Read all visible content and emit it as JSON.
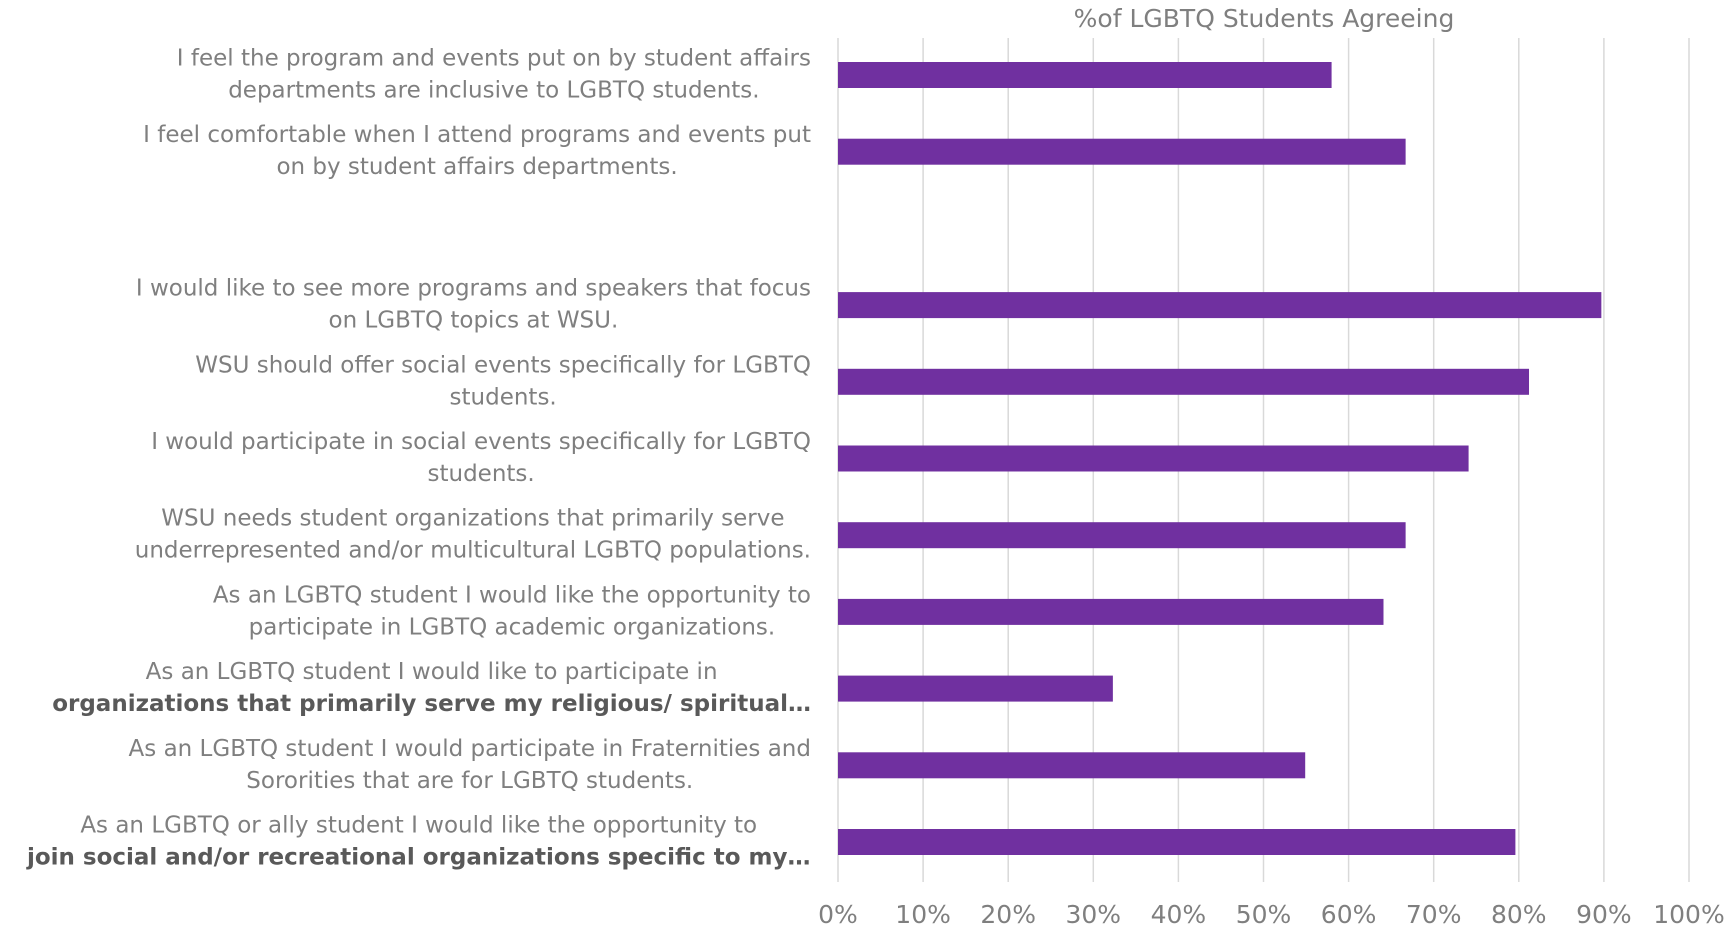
{
  "chart_data": {
    "type": "hbar",
    "x_axis_title": "%of LGBTQ Students Agreeing",
    "categories": [
      [
        "I feel the program and events put on by student affairs",
        "departments are inclusive to LGBTQ students."
      ],
      [
        "I feel comfortable when I attend programs and events put",
        "on by student affairs departments."
      ],
      null,
      [
        "I would like to see more programs and speakers that focus",
        "on LGBTQ topics at WSU."
      ],
      [
        "WSU should offer social events specifically for LGBTQ",
        "students."
      ],
      [
        "I would participate in social events specifically for LGBTQ",
        "students."
      ],
      [
        "WSU needs student organizations that primarily serve",
        "underrepresented and/or multicultural LGBTQ populations."
      ],
      [
        "As an LGBTQ student I would like the opportunity to",
        "participate in LGBTQ academic organizations."
      ],
      [
        "As an LGBTQ student I would like to participate in",
        "organizations that primarily serve my religious/ spiritual…"
      ],
      [
        "As an LGBTQ student I would participate in Fraternities and",
        "Sororities that are for LGBTQ students."
      ],
      [
        "As an LGBTQ or ally student I would like the opportunity to",
        "join social and/or recreational organizations specific to my…"
      ]
    ],
    "values": [
      58.0,
      66.7,
      null,
      89.7,
      81.2,
      74.1,
      66.7,
      64.1,
      32.3,
      54.9,
      79.6
    ],
    "color": "#7030a0",
    "xlim": [
      0,
      100
    ],
    "xticks": [
      {
        "value": 0,
        "label": "0%"
      },
      {
        "value": 10,
        "label": "10%"
      },
      {
        "value": 20,
        "label": "20%"
      },
      {
        "value": 30,
        "label": "30%"
      },
      {
        "value": 40,
        "label": "40%"
      },
      {
        "value": 50,
        "label": "50%"
      },
      {
        "value": 60,
        "label": "60%"
      },
      {
        "value": 70,
        "label": "70%"
      },
      {
        "value": 80,
        "label": "80%"
      },
      {
        "value": 90,
        "label": "90%"
      },
      {
        "value": 100,
        "label": "100%"
      }
    ],
    "grid": true
  }
}
